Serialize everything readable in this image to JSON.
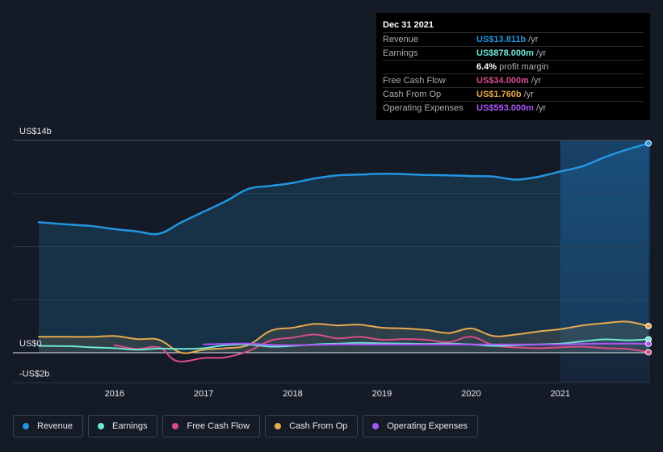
{
  "tooltip": {
    "date": "Dec 31 2021",
    "rows": [
      {
        "label": "Revenue",
        "value": "US$13.811b",
        "unit": "/yr",
        "color": "#2394df"
      },
      {
        "label": "Earnings",
        "value": "US$878.000m",
        "unit": "/yr",
        "color": "#6ee7d6"
      },
      {
        "label": "",
        "value": "6.4%",
        "unit": "profit margin",
        "color": "#ffffff"
      },
      {
        "label": "Free Cash Flow",
        "value": "US$34.000m",
        "unit": "/yr",
        "color": "#d64d8a"
      },
      {
        "label": "Cash From Op",
        "value": "US$1.760b",
        "unit": "/yr",
        "color": "#e8a94f"
      },
      {
        "label": "Operating Expenses",
        "value": "US$593.000m",
        "unit": "/yr",
        "color": "#a855f7"
      }
    ]
  },
  "legend": [
    {
      "label": "Revenue",
      "color": "#2394df"
    },
    {
      "label": "Earnings",
      "color": "#6ee7d6"
    },
    {
      "label": "Free Cash Flow",
      "color": "#d64d8a"
    },
    {
      "label": "Cash From Op",
      "color": "#e8a94f"
    },
    {
      "label": "Operating Expenses",
      "color": "#a855f7"
    }
  ],
  "chart_data": {
    "type": "line",
    "title": "",
    "xlabel": "",
    "ylabel": "",
    "ylim": [
      -2,
      14
    ],
    "xlim": [
      2015.15,
      2021.99
    ],
    "y_tick_labels": [
      {
        "value": 14,
        "label": "US$14b"
      },
      {
        "value": 0,
        "label": "US$0"
      },
      {
        "value": -2,
        "label": "-US$2b"
      }
    ],
    "x_ticks": [
      2016,
      2017,
      2018,
      2019,
      2020,
      2021
    ],
    "x_tick_labels": [
      "2016",
      "2017",
      "2018",
      "2019",
      "2020",
      "2021"
    ],
    "forecast_shade_from": 2021.0,
    "series": [
      {
        "name": "Revenue",
        "color": "#2394df",
        "fill": true,
        "x": [
          2015.15,
          2015.5,
          2015.75,
          2016.0,
          2016.25,
          2016.5,
          2016.75,
          2017.0,
          2017.25,
          2017.5,
          2017.75,
          2018.0,
          2018.25,
          2018.5,
          2018.75,
          2019.0,
          2019.25,
          2019.5,
          2019.75,
          2020.0,
          2020.25,
          2020.5,
          2020.75,
          2021.0,
          2021.25,
          2021.5,
          2021.75,
          2021.99
        ],
        "y": [
          8.6,
          8.45,
          8.35,
          8.15,
          8.0,
          7.85,
          8.6,
          9.3,
          10.0,
          10.8,
          11.0,
          11.2,
          11.5,
          11.7,
          11.75,
          11.8,
          11.78,
          11.72,
          11.7,
          11.65,
          11.62,
          11.42,
          11.6,
          11.95,
          12.3,
          12.9,
          13.4,
          13.81
        ]
      },
      {
        "name": "Earnings",
        "color": "#6ee7d6",
        "fill": false,
        "x": [
          2015.15,
          2015.5,
          2015.75,
          2016.0,
          2016.25,
          2016.5,
          2016.75,
          2017.0,
          2017.25,
          2017.5,
          2017.75,
          2018.0,
          2018.25,
          2018.5,
          2018.75,
          2019.0,
          2019.25,
          2019.5,
          2019.75,
          2020.0,
          2020.25,
          2020.5,
          2020.75,
          2021.0,
          2021.25,
          2021.5,
          2021.75,
          2021.99
        ],
        "y": [
          0.45,
          0.43,
          0.35,
          0.3,
          0.2,
          0.28,
          0.25,
          0.3,
          0.5,
          0.55,
          0.4,
          0.45,
          0.55,
          0.6,
          0.65,
          0.62,
          0.6,
          0.58,
          0.6,
          0.55,
          0.45,
          0.5,
          0.55,
          0.6,
          0.75,
          0.88,
          0.82,
          0.88
        ]
      },
      {
        "name": "Free Cash Flow",
        "color": "#d64d8a",
        "fill": false,
        "x": [
          2016.0,
          2016.25,
          2016.5,
          2016.7,
          2017.0,
          2017.25,
          2017.5,
          2017.75,
          2018.0,
          2018.25,
          2018.5,
          2018.75,
          2019.0,
          2019.25,
          2019.5,
          2019.75,
          2020.0,
          2020.25,
          2020.5,
          2020.75,
          2021.0,
          2021.25,
          2021.5,
          2021.75,
          2021.99
        ],
        "y": [
          0.5,
          0.25,
          0.35,
          -0.55,
          -0.35,
          -0.3,
          0.1,
          0.8,
          1.0,
          1.2,
          0.95,
          1.05,
          0.85,
          0.9,
          0.85,
          0.7,
          1.05,
          0.5,
          0.35,
          0.3,
          0.35,
          0.4,
          0.3,
          0.25,
          0.03
        ]
      },
      {
        "name": "Cash From Op",
        "color": "#e8a94f",
        "fill": true,
        "x": [
          2015.15,
          2015.5,
          2015.75,
          2016.0,
          2016.25,
          2016.5,
          2016.75,
          2017.0,
          2017.25,
          2017.5,
          2017.75,
          2018.0,
          2018.25,
          2018.5,
          2018.75,
          2019.0,
          2019.25,
          2019.5,
          2019.75,
          2020.0,
          2020.25,
          2020.5,
          2020.75,
          2021.0,
          2021.25,
          2021.5,
          2021.75,
          2021.99
        ],
        "y": [
          1.05,
          1.05,
          1.05,
          1.1,
          0.9,
          0.85,
          0.0,
          0.2,
          0.3,
          0.5,
          1.45,
          1.65,
          1.9,
          1.8,
          1.85,
          1.65,
          1.6,
          1.5,
          1.3,
          1.6,
          1.1,
          1.2,
          1.4,
          1.55,
          1.8,
          1.95,
          2.05,
          1.76
        ]
      },
      {
        "name": "Operating Expenses",
        "color": "#a855f7",
        "fill": false,
        "x": [
          2017.0,
          2017.25,
          2017.5,
          2017.75,
          2018.0,
          2018.25,
          2018.5,
          2018.75,
          2019.0,
          2019.25,
          2019.5,
          2019.75,
          2020.0,
          2020.25,
          2020.5,
          2020.75,
          2021.0,
          2021.25,
          2021.5,
          2021.75,
          2021.99
        ],
        "y": [
          0.55,
          0.58,
          0.6,
          0.52,
          0.5,
          0.52,
          0.55,
          0.55,
          0.55,
          0.55,
          0.55,
          0.55,
          0.55,
          0.55,
          0.55,
          0.55,
          0.55,
          0.58,
          0.6,
          0.6,
          0.59
        ]
      }
    ]
  }
}
